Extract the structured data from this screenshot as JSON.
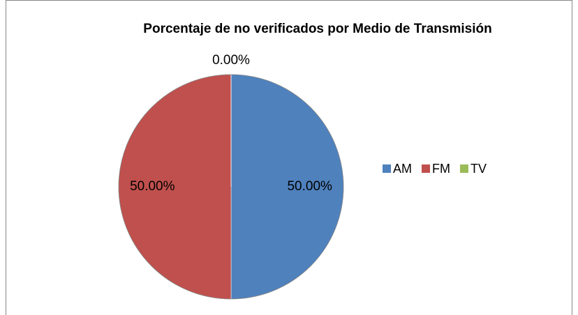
{
  "chart_data": {
    "type": "pie",
    "title": "Porcentaje de no verificados por Medio de Transmisión",
    "categories": [
      "AM",
      "FM",
      "TV"
    ],
    "values": [
      50,
      50,
      0
    ],
    "value_labels": [
      "50.00%",
      "50.00%",
      "0.00%"
    ],
    "colors": [
      "#4f81bd",
      "#c0504d",
      "#9bbb59"
    ],
    "legend": "right"
  }
}
